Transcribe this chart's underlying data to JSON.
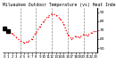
{
  "title": "Milwaukee Outdoor Temperature (vs) Heat Index (Last 24 Hours)",
  "title_fontsize": 3.5,
  "line_color": "#ff0000",
  "marker_color": "#000000",
  "bg_color": "#ffffff",
  "grid_color": "#888888",
  "ylim": [
    45,
    95
  ],
  "yticks": [
    50,
    60,
    70,
    80,
    90
  ],
  "ylabel_fontsize": 3.2,
  "xlabel_fontsize": 2.8,
  "grid_x_positions": [
    4,
    8,
    12,
    16,
    20
  ],
  "x_data": [
    0,
    1,
    2,
    3,
    4,
    5,
    6,
    7,
    8,
    9,
    10,
    11,
    12,
    13,
    14,
    15,
    16,
    17,
    18,
    19,
    20,
    21,
    22,
    23
  ],
  "y_data": [
    72,
    69,
    66,
    62,
    58,
    56,
    57,
    60,
    67,
    74,
    80,
    85,
    88,
    87,
    83,
    77,
    65,
    60,
    63,
    62,
    65,
    64,
    67,
    69
  ],
  "black_marker_indices": [
    0,
    1
  ]
}
